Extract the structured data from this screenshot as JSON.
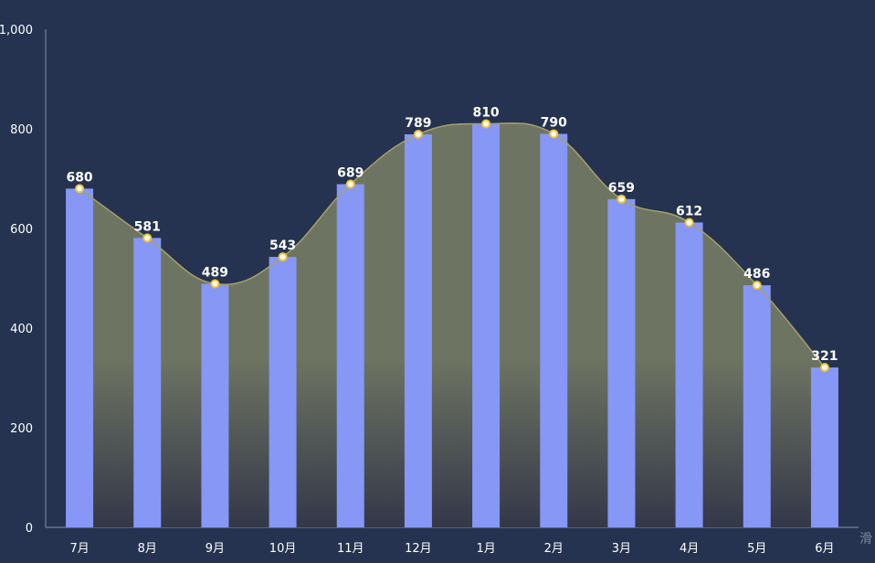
{
  "chart_data": {
    "type": "bar",
    "categories": [
      "7月",
      "8月",
      "9月",
      "10月",
      "11月",
      "12月",
      "1月",
      "2月",
      "3月",
      "4月",
      "5月",
      "6月"
    ],
    "series": [
      {
        "type": "bar",
        "values": [
          680,
          581,
          489,
          543,
          689,
          789,
          810,
          790,
          659,
          612,
          486,
          321
        ]
      },
      {
        "type": "area-line",
        "smooth": true,
        "values": [
          680,
          581,
          489,
          543,
          689,
          789,
          810,
          790,
          659,
          612,
          486,
          321
        ]
      }
    ],
    "ylim": [
      0,
      1000
    ],
    "yticks": [
      0,
      200,
      400,
      600,
      800,
      1000
    ],
    "ytick_labels": [
      "0",
      "200",
      "400",
      "600",
      "800",
      "1,000"
    ],
    "grid": false,
    "colors": {
      "background": "#253350",
      "bar": "#8697f5",
      "line": "#a8a06a",
      "area_top": "#6e7462",
      "area_bottom": "#333849",
      "marker_fill": "#ffffff",
      "marker_stroke": "#f2c230",
      "axis": "#8a92a6"
    }
  },
  "side_text": "滑"
}
